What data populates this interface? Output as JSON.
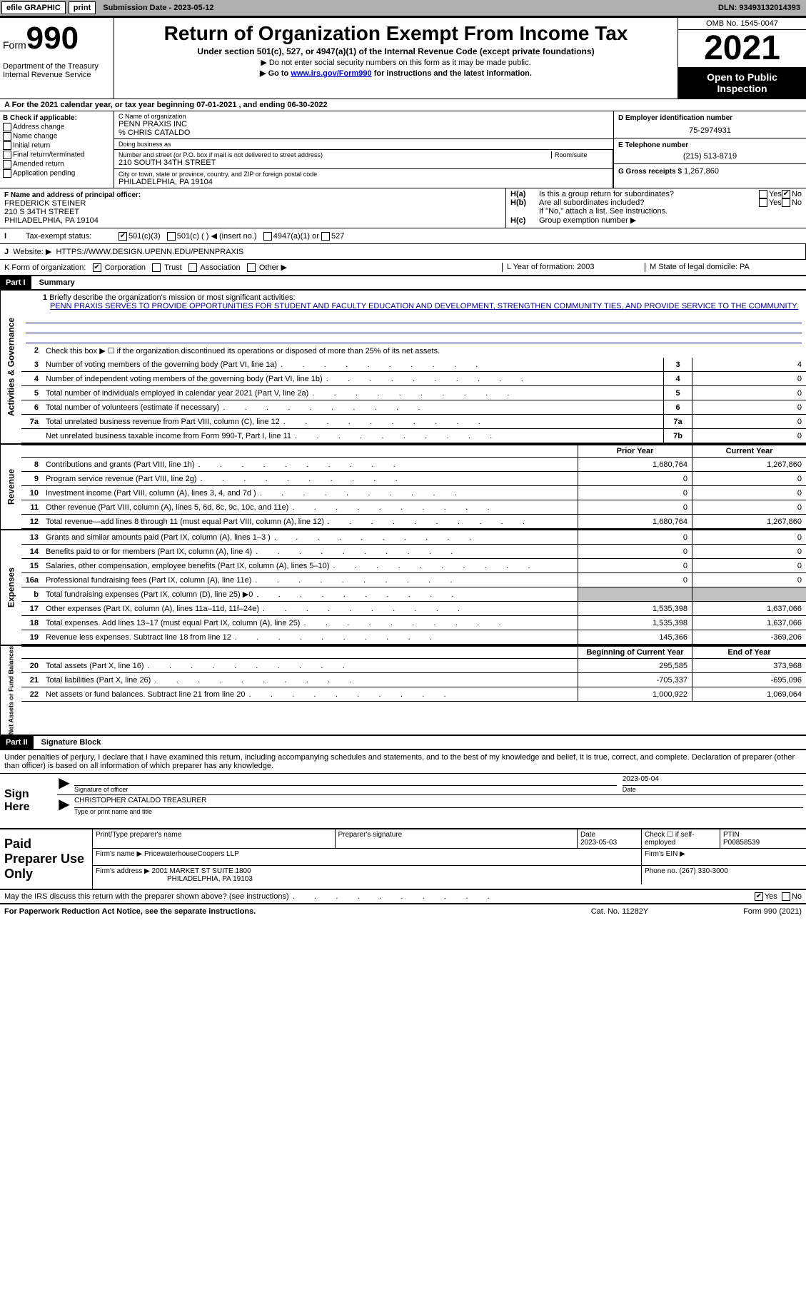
{
  "topbar": {
    "efile": "efile GRAPHIC",
    "print": "print",
    "submission": "Submission Date - 2023-05-12",
    "dln": "DLN: 93493132014393"
  },
  "header": {
    "form_prefix": "Form",
    "form_num": "990",
    "dept": "Department of the Treasury Internal Revenue Service",
    "title": "Return of Organization Exempt From Income Tax",
    "sub1": "Under section 501(c), 527, or 4947(a)(1) of the Internal Revenue Code (except private foundations)",
    "sub2": "▶ Do not enter social security numbers on this form as it may be made public.",
    "sub3_pre": "▶ Go to ",
    "sub3_link": "www.irs.gov/Form990",
    "sub3_post": " for instructions and the latest information.",
    "omb": "OMB No. 1545-0047",
    "year": "2021",
    "open": "Open to Public Inspection"
  },
  "row_a": "A For the 2021 calendar year, or tax year beginning 07-01-2021     , and ending 06-30-2022",
  "col_b": {
    "hdr": "B Check if applicable:",
    "opts": [
      "Address change",
      "Name change",
      "Initial return",
      "Final return/terminated",
      "Amended return",
      "Application pending"
    ]
  },
  "col_c": {
    "name_lbl": "C Name of organization",
    "name": "PENN PRAXIS INC",
    "care": "% CHRIS CATALDO",
    "dba_lbl": "Doing business as",
    "street_lbl": "Number and street (or P.O. box if mail is not delivered to street address)",
    "room_lbl": "Room/suite",
    "street": "210 SOUTH 34TH STREET",
    "city_lbl": "City or town, state or province, country, and ZIP or foreign postal code",
    "city": "PHILADELPHIA, PA  19104"
  },
  "col_d": {
    "ein_lbl": "D Employer identification number",
    "ein": "75-2974931",
    "tel_lbl": "E Telephone number",
    "tel": "(215) 513-8719",
    "gross_lbl": "G Gross receipts $",
    "gross": "1,267,860"
  },
  "col_f": {
    "lbl": "F Name and address of principal officer:",
    "name": "FREDERICK STEINER",
    "addr1": "210 S 34TH STREET",
    "addr2": "PHILADELPHIA, PA  19104"
  },
  "col_h": {
    "a": "Is this a group return for subordinates?",
    "b": "Are all subordinates included?",
    "note": "If \"No,\" attach a list. See instructions.",
    "c": "Group exemption number ▶"
  },
  "row_i": {
    "lbl": "Tax-exempt status:",
    "o1": "501(c)(3)",
    "o2": "501(c) (  ) ◀ (insert no.)",
    "o3": "4947(a)(1) or",
    "o4": "527"
  },
  "row_j": {
    "lbl": "Website: ▶",
    "val": "HTTPS://WWW.DESIGN.UPENN.EDU/PENNPRAXIS"
  },
  "row_k": {
    "lbl": "K Form of organization:",
    "o1": "Corporation",
    "o2": "Trust",
    "o3": "Association",
    "o4": "Other ▶",
    "l_lbl": "L Year of formation:",
    "l_val": "2003",
    "m_lbl": "M State of legal domicile:",
    "m_val": "PA"
  },
  "part1": {
    "hdr": "Part I",
    "title": "Summary",
    "mission_lbl": "Briefly describe the organization's mission or most significant activities:",
    "mission": "PENN PRAXIS SERVES TO PROVIDE OPPORTUNITIES FOR STUDENT AND FACULTY EDUCATION AND DEVELOPMENT, STRENGTHEN COMMUNITY TIES, AND PROVIDE SERVICE TO THE COMMUNITY.",
    "line2": "Check this box ▶ ☐ if the organization discontinued its operations or disposed of more than 25% of its net assets.",
    "gov_lines": [
      {
        "n": "3",
        "d": "Number of voting members of the governing body (Part VI, line 1a)",
        "box": "3",
        "v": "4"
      },
      {
        "n": "4",
        "d": "Number of independent voting members of the governing body (Part VI, line 1b)",
        "box": "4",
        "v": "0"
      },
      {
        "n": "5",
        "d": "Total number of individuals employed in calendar year 2021 (Part V, line 2a)",
        "box": "5",
        "v": "0"
      },
      {
        "n": "6",
        "d": "Total number of volunteers (estimate if necessary)",
        "box": "6",
        "v": "0"
      },
      {
        "n": "7a",
        "d": "Total unrelated business revenue from Part VIII, column (C), line 12",
        "box": "7a",
        "v": "0"
      },
      {
        "n": "",
        "d": "Net unrelated business taxable income from Form 990-T, Part I, line 11",
        "box": "7b",
        "v": "0"
      }
    ],
    "col_hdrs": {
      "prior": "Prior Year",
      "current": "Current Year"
    },
    "rev_lines": [
      {
        "n": "8",
        "d": "Contributions and grants (Part VIII, line 1h)",
        "p": "1,680,764",
        "c": "1,267,860"
      },
      {
        "n": "9",
        "d": "Program service revenue (Part VIII, line 2g)",
        "p": "0",
        "c": "0"
      },
      {
        "n": "10",
        "d": "Investment income (Part VIII, column (A), lines 3, 4, and 7d )",
        "p": "0",
        "c": "0"
      },
      {
        "n": "11",
        "d": "Other revenue (Part VIII, column (A), lines 5, 6d, 8c, 9c, 10c, and 11e)",
        "p": "0",
        "c": "0"
      },
      {
        "n": "12",
        "d": "Total revenue—add lines 8 through 11 (must equal Part VIII, column (A), line 12)",
        "p": "1,680,764",
        "c": "1,267,860"
      }
    ],
    "exp_lines": [
      {
        "n": "13",
        "d": "Grants and similar amounts paid (Part IX, column (A), lines 1–3 )",
        "p": "0",
        "c": "0"
      },
      {
        "n": "14",
        "d": "Benefits paid to or for members (Part IX, column (A), line 4)",
        "p": "0",
        "c": "0"
      },
      {
        "n": "15",
        "d": "Salaries, other compensation, employee benefits (Part IX, column (A), lines 5–10)",
        "p": "0",
        "c": "0"
      },
      {
        "n": "16a",
        "d": "Professional fundraising fees (Part IX, column (A), line 11e)",
        "p": "0",
        "c": "0"
      },
      {
        "n": "b",
        "d": "Total fundraising expenses (Part IX, column (D), line 25) ▶0",
        "p": "",
        "c": "",
        "shaded": true
      },
      {
        "n": "17",
        "d": "Other expenses (Part IX, column (A), lines 11a–11d, 11f–24e)",
        "p": "1,535,398",
        "c": "1,637,066"
      },
      {
        "n": "18",
        "d": "Total expenses. Add lines 13–17 (must equal Part IX, column (A), line 25)",
        "p": "1,535,398",
        "c": "1,637,066"
      },
      {
        "n": "19",
        "d": "Revenue less expenses. Subtract line 18 from line 12",
        "p": "145,366",
        "c": "-369,206"
      }
    ],
    "net_hdrs": {
      "begin": "Beginning of Current Year",
      "end": "End of Year"
    },
    "net_lines": [
      {
        "n": "20",
        "d": "Total assets (Part X, line 16)",
        "p": "295,585",
        "c": "373,968"
      },
      {
        "n": "21",
        "d": "Total liabilities (Part X, line 26)",
        "p": "-705,337",
        "c": "-695,096"
      },
      {
        "n": "22",
        "d": "Net assets or fund balances. Subtract line 21 from line 20",
        "p": "1,000,922",
        "c": "1,069,064"
      }
    ],
    "vtabs": {
      "gov": "Activities & Governance",
      "rev": "Revenue",
      "exp": "Expenses",
      "net": "Net Assets or Fund Balances"
    }
  },
  "part2": {
    "hdr": "Part II",
    "title": "Signature Block",
    "intro": "Under penalties of perjury, I declare that I have examined this return, including accompanying schedules and statements, and to the best of my knowledge and belief, it is true, correct, and complete. Declaration of preparer (other than officer) is based on all information of which preparer has any knowledge.",
    "sign_here": "Sign Here",
    "sig_officer_lbl": "Signature of officer",
    "sig_date": "2023-05-04",
    "sig_date_lbl": "Date",
    "sig_name": "CHRISTOPHER CATALDO  TREASURER",
    "sig_name_lbl": "Type or print name and title",
    "prep_hdr": "Paid Preparer Use Only",
    "prep_name_lbl": "Print/Type preparer's name",
    "prep_sig_lbl": "Preparer's signature",
    "prep_date_lbl": "Date",
    "prep_date": "2023-05-03",
    "prep_check_lbl": "Check ☐ if self-employed",
    "ptin_lbl": "PTIN",
    "ptin": "P00858539",
    "firm_name_lbl": "Firm's name      ▶",
    "firm_name": "PricewaterhouseCoopers LLP",
    "firm_ein_lbl": "Firm's EIN ▶",
    "firm_addr_lbl": "Firm's address ▶",
    "firm_addr1": "2001 MARKET ST SUITE 1800",
    "firm_addr2": "PHILADELPHIA, PA  19103",
    "firm_phone_lbl": "Phone no.",
    "firm_phone": "(267) 330-3000",
    "discuss": "May the IRS discuss this return with the preparer shown above? (see instructions)"
  },
  "footer": {
    "left": "For Paperwork Reduction Act Notice, see the separate instructions.",
    "mid": "Cat. No. 11282Y",
    "right": "Form 990 (2021)"
  },
  "yn": {
    "yes": "Yes",
    "no": "No"
  }
}
